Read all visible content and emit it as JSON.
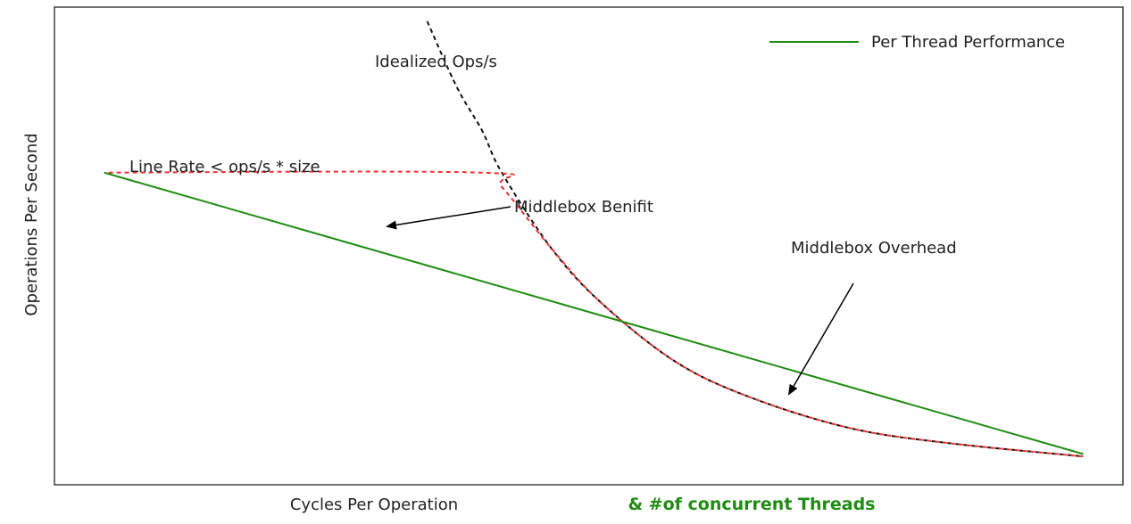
{
  "chart_data": {
    "type": "line",
    "title": "",
    "xlabel": "Cycles Per Operation",
    "xlabel_extra": "& #of concurrent Threads",
    "ylabel": "Operations Per Second",
    "legend": {
      "position": "top-right",
      "entries": [
        {
          "label": "Per Thread Performance",
          "color": "#1e8c10",
          "style": "solid"
        }
      ]
    },
    "series": [
      {
        "name": "Per Thread Performance",
        "style": "solid",
        "color": "#1e8c10",
        "x": [
          1.0,
          20.7
        ],
        "y": [
          6.0,
          0.05
        ]
      },
      {
        "name": "Idealized Ops/s",
        "style": "dashed",
        "color": "#111111",
        "x": [
          7.5,
          8.1,
          8.6,
          9.0,
          10.0,
          11.0,
          12.5,
          14.0,
          16.0,
          18.0,
          20.7
        ],
        "y": [
          9.2,
          7.8,
          6.9,
          6.0,
          4.4,
          3.25,
          2.0,
          1.25,
          0.6,
          0.28,
          0.0
        ]
      },
      {
        "name": "Line Rate < ops/s * size",
        "style": "dashed",
        "color": "#f03030",
        "x": [
          1.0,
          8.6,
          9.0,
          10.0,
          11.0,
          12.5,
          14.0,
          16.0,
          18.0,
          20.7
        ],
        "y": [
          6.0,
          6.0,
          5.7,
          4.4,
          3.25,
          2.0,
          1.25,
          0.6,
          0.28,
          0.0
        ]
      }
    ],
    "annotations": [
      {
        "text": "Idealized Ops/s",
        "arrow": false
      },
      {
        "text": "Line Rate < ops/s * size",
        "arrow": false
      },
      {
        "text": "Middlebox Benifit",
        "arrow": true
      },
      {
        "text": "Middlebox Overhead",
        "arrow": true
      }
    ],
    "xlim": [
      0,
      21.5
    ],
    "ylim": [
      -0.6,
      9.5
    ],
    "grid": false,
    "ticks": false
  }
}
